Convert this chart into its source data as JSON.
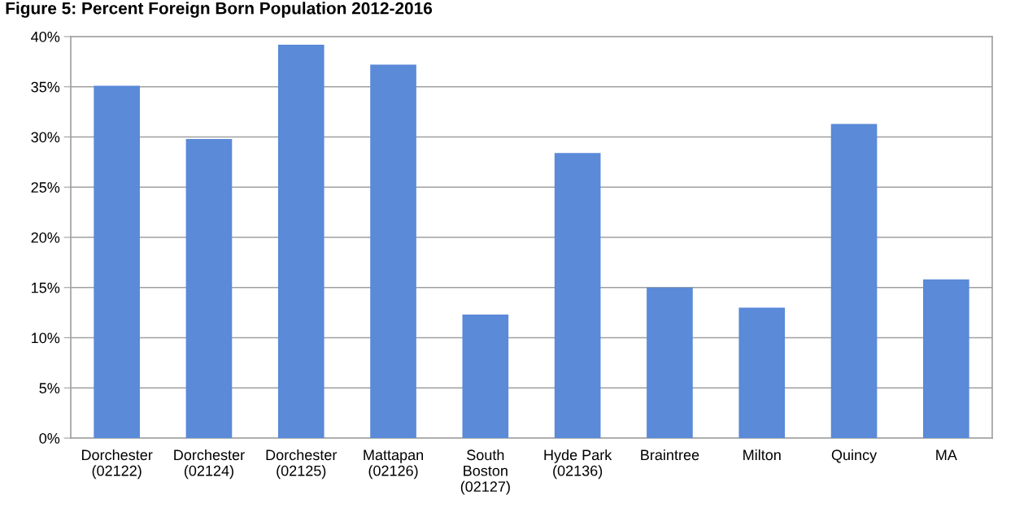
{
  "chart_data": {
    "type": "bar",
    "title": "Figure 5: Percent Foreign Born Population 2012-2016",
    "categories": [
      "Dorchester\n(02122)",
      "Dorchester\n(02124)",
      "Dorchester\n(02125)",
      "Mattapan\n(02126)",
      "South\nBoston\n(02127)",
      "Hyde Park\n(02136)",
      "Braintree",
      "Milton",
      "Quincy",
      "MA"
    ],
    "values": [
      35.1,
      29.8,
      39.2,
      37.2,
      12.3,
      28.4,
      15.0,
      13.0,
      31.3,
      15.8
    ],
    "color": "#5a8ad8",
    "ylim": [
      0,
      40
    ],
    "yticks": [
      {
        "value": 0,
        "label": "0%"
      },
      {
        "value": 5,
        "label": "5%"
      },
      {
        "value": 10,
        "label": "10%"
      },
      {
        "value": 15,
        "label": "15%"
      },
      {
        "value": 20,
        "label": "20%"
      },
      {
        "value": 25,
        "label": "25%"
      },
      {
        "value": 30,
        "label": "30%"
      },
      {
        "value": 35,
        "label": "35%"
      },
      {
        "value": 40,
        "label": "40%"
      }
    ],
    "grid": "y",
    "legend": false
  }
}
